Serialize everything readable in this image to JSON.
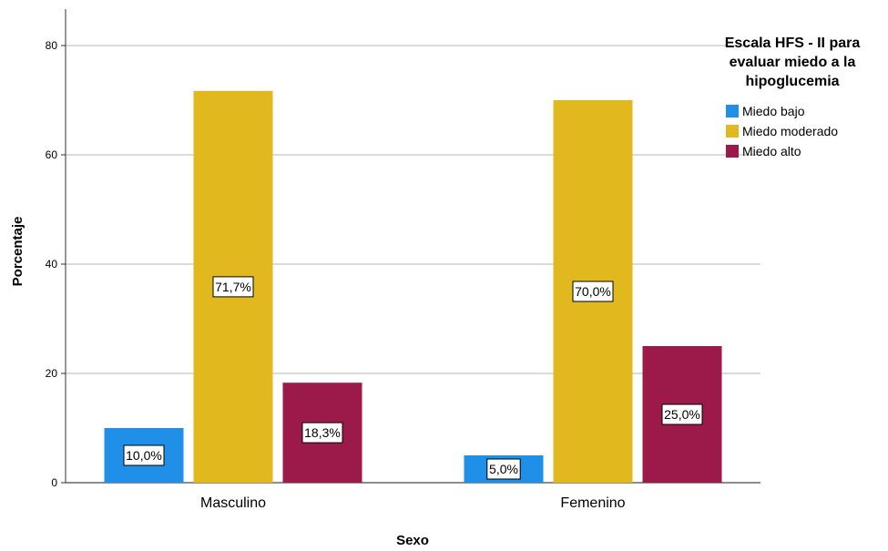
{
  "chart_data": {
    "type": "bar",
    "categories": [
      "Masculino",
      "Femenino"
    ],
    "series": [
      {
        "name": "Miedo bajo",
        "values": [
          10.0,
          5.0
        ],
        "labels": [
          "10,0%",
          "5,0%"
        ],
        "color": "#1f8fe8"
      },
      {
        "name": "Miedo moderado",
        "values": [
          71.7,
          70.0
        ],
        "labels": [
          "71,7%",
          "70,0%"
        ],
        "color": "#e1b91f"
      },
      {
        "name": "Miedo alto",
        "values": [
          18.3,
          25.0
        ],
        "labels": [
          "18,3%",
          "25,0%"
        ],
        "color": "#9c1a4a"
      }
    ],
    "xlabel": "Sexo",
    "ylabel": "Porcentaje",
    "ylim": [
      0,
      80
    ],
    "yticks": [
      0,
      20,
      40,
      60,
      80
    ],
    "ytick_labels": [
      "0",
      "20",
      "40",
      "60",
      "80"
    ],
    "grid": true,
    "legend": {
      "title_lines": [
        "Escala HFS - II para",
        "evaluar miedo a la",
        "hipoglucemia"
      ],
      "position": "right"
    }
  }
}
